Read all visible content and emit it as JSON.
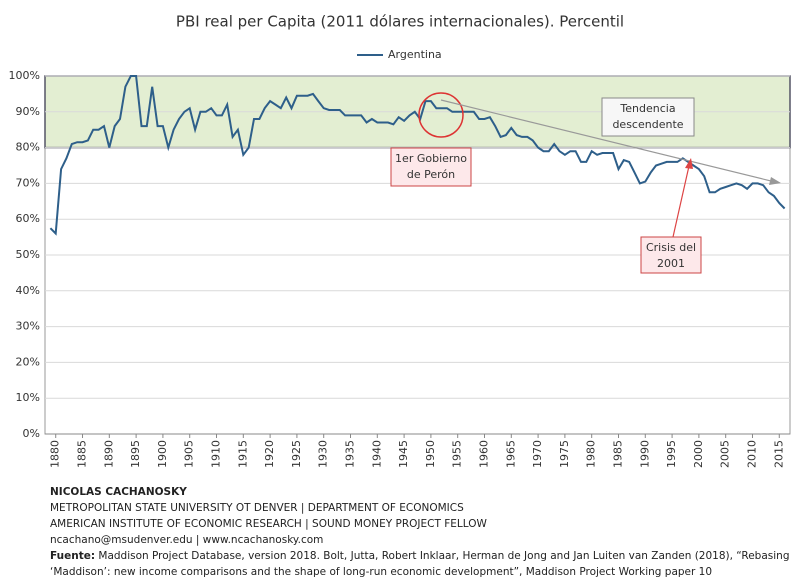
{
  "chart_data": {
    "type": "line",
    "title": "PBI real per Capita (2011 dólares internacionales). Percentil",
    "x": [
      1879,
      1880,
      1881,
      1882,
      1883,
      1884,
      1885,
      1886,
      1887,
      1888,
      1889,
      1890,
      1891,
      1892,
      1893,
      1894,
      1895,
      1896,
      1897,
      1898,
      1899,
      1900,
      1901,
      1902,
      1903,
      1904,
      1905,
      1906,
      1907,
      1908,
      1909,
      1910,
      1911,
      1912,
      1913,
      1914,
      1915,
      1916,
      1917,
      1918,
      1919,
      1920,
      1921,
      1922,
      1923,
      1924,
      1925,
      1926,
      1927,
      1928,
      1929,
      1930,
      1931,
      1932,
      1933,
      1934,
      1935,
      1936,
      1937,
      1938,
      1939,
      1940,
      1941,
      1942,
      1943,
      1944,
      1945,
      1946,
      1947,
      1948,
      1949,
      1950,
      1951,
      1952,
      1953,
      1954,
      1955,
      1956,
      1957,
      1958,
      1959,
      1960,
      1961,
      1962,
      1963,
      1964,
      1965,
      1966,
      1967,
      1968,
      1969,
      1970,
      1971,
      1972,
      1973,
      1974,
      1975,
      1976,
      1977,
      1978,
      1979,
      1980,
      1981,
      1982,
      1983,
      1984,
      1985,
      1986,
      1987,
      1988,
      1989,
      1990,
      1991,
      1992,
      1993,
      1994,
      1995,
      1996,
      1997,
      1998,
      1999,
      2000,
      2001,
      2002,
      2003,
      2004,
      2005,
      2006,
      2007,
      2008,
      2009,
      2010,
      2011,
      2012,
      2013,
      2014,
      2015,
      2016
    ],
    "series": [
      {
        "name": "Argentina",
        "color": "#2e5f8a",
        "values": [
          57.5,
          56,
          74,
          77,
          81,
          81.5,
          81.5,
          82,
          85,
          85,
          86,
          80,
          86,
          88,
          97,
          100,
          100,
          86,
          86,
          97,
          86,
          86,
          80,
          85,
          88,
          90,
          91,
          85,
          90,
          90,
          91,
          89,
          89,
          92,
          83,
          85,
          78,
          80,
          88,
          88,
          91,
          93,
          92,
          91,
          94,
          91,
          94.5,
          94.5,
          94.5,
          95,
          93,
          91,
          90.5,
          90.5,
          90.5,
          89,
          89,
          89,
          89,
          87,
          88,
          87,
          87,
          87,
          86.5,
          88.5,
          87.5,
          89,
          90,
          88,
          93,
          93,
          91,
          91,
          91,
          90,
          90,
          90,
          90,
          90,
          88,
          88,
          88.5,
          86,
          83,
          83.5,
          85.5,
          83.5,
          83,
          83,
          82,
          80,
          79,
          79,
          81,
          79,
          78,
          79,
          79,
          76,
          76,
          79,
          78,
          78.5,
          78.5,
          78.5,
          74,
          76.5,
          76,
          73,
          70,
          70.5,
          73,
          75,
          75.5,
          76,
          76,
          76,
          77,
          76,
          75,
          74,
          72,
          67.5,
          67.5,
          68.5,
          69,
          69.5,
          70,
          69.5,
          68.5,
          70,
          70,
          69.5,
          67.5,
          66.5,
          64.5,
          63
        ]
      }
    ],
    "xlim": [
      1878,
      2017
    ],
    "xticks": [
      1880,
      1885,
      1890,
      1895,
      1900,
      1905,
      1910,
      1915,
      1920,
      1925,
      1930,
      1935,
      1940,
      1945,
      1950,
      1955,
      1960,
      1965,
      1970,
      1975,
      1980,
      1985,
      1990,
      1995,
      2000,
      2005,
      2010,
      2015
    ],
    "ylim": [
      0,
      100
    ],
    "yticks": [
      {
        "value": 0,
        "label": "0%"
      },
      {
        "value": 10,
        "label": "10%"
      },
      {
        "value": 20,
        "label": "20%"
      },
      {
        "value": 30,
        "label": "30%"
      },
      {
        "value": 40,
        "label": "40%"
      },
      {
        "value": 50,
        "label": "50%"
      },
      {
        "value": 60,
        "label": "60%"
      },
      {
        "value": 70,
        "label": "70%"
      },
      {
        "value": 80,
        "label": "80%"
      },
      {
        "value": 90,
        "label": "90%"
      },
      {
        "value": 100,
        "label": "100%"
      }
    ],
    "grid": true,
    "legend": "top",
    "highlight_band": [
      80,
      100
    ],
    "highlight_color": "#e3eed2",
    "annotations": [
      {
        "lines": [
          "1er Gobierno",
          "de Perón"
        ]
      },
      {
        "lines": [
          "Tendencia",
          "descendente"
        ]
      },
      {
        "lines": [
          "Crisis del",
          "2001"
        ]
      }
    ]
  },
  "footer": {
    "author": "NICOLAS CACHANOSKY",
    "lines": [
      "METROPOLITAN STATE UNIVERSITY OT DENVER | DEPARTMENT OF ECONOMICS",
      "AMERICAN INSTITUTE OF ECONOMIC RESEARCH | SOUND MONEY PROJECT FELLOW",
      "ncachano@msudenver.edu  |  www.ncachanosky.com"
    ],
    "source_label": "Fuente:",
    "source_text": " Maddison Project Database, version 2018. Bolt, Jutta, Robert Inklaar, Herman de Jong and Jan Luiten van Zanden (2018), “Rebasing ‘Maddison’: new income comparisons and the shape of long-run economic development”, Maddison Project Working paper 10"
  }
}
